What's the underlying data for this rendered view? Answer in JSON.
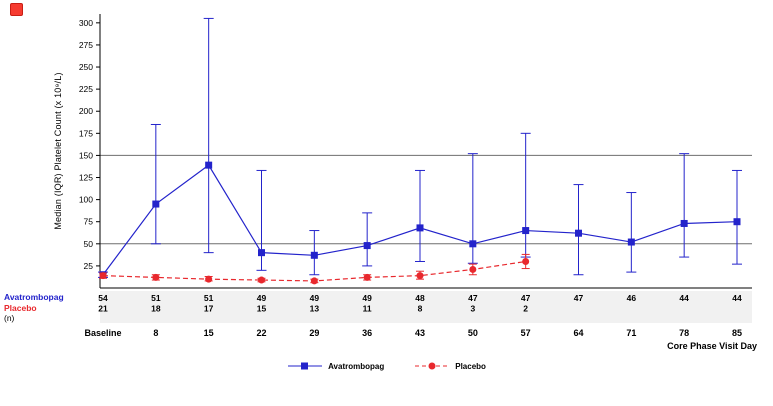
{
  "figure": {
    "broken_image_icon": "broken-image"
  },
  "chart_data": {
    "type": "line",
    "title": "",
    "ylabel": "Median (IQR) Platelet Count (x 10⁹/L)",
    "xlabel": "Core Phase Visit Day",
    "categories": [
      "Baseline",
      "8",
      "15",
      "22",
      "29",
      "36",
      "43",
      "50",
      "57",
      "64",
      "71",
      "78",
      "85"
    ],
    "yticks": [
      25,
      50,
      75,
      100,
      125,
      150,
      175,
      200,
      225,
      250,
      275,
      300
    ],
    "ylim": [
      0,
      310
    ],
    "reference_lines": [
      50,
      150
    ],
    "grid": false,
    "legend_position": "bottom-center",
    "n_table_label": "(n)",
    "series": [
      {
        "name": "Avatrombopag",
        "color": "#2323cb",
        "marker": "square",
        "line": "solid",
        "medians": [
          15,
          95,
          139,
          40,
          37,
          48,
          68,
          50,
          65,
          62,
          52,
          73,
          75
        ],
        "iqr_low": [
          12,
          50,
          40,
          20,
          15,
          25,
          30,
          28,
          35,
          15,
          18,
          35,
          27
        ],
        "iqr_high": [
          18,
          185,
          305,
          133,
          65,
          85,
          133,
          152,
          175,
          117,
          108,
          152,
          133
        ],
        "n": [
          54,
          51,
          51,
          49,
          49,
          49,
          48,
          47,
          47,
          47,
          46,
          44,
          44
        ]
      },
      {
        "name": "Placebo",
        "color": "#e8282d",
        "marker": "circle",
        "line": "dashed",
        "medians": [
          14,
          12,
          10,
          9,
          8,
          12,
          14,
          21,
          30
        ],
        "iqr_low": [
          11,
          9,
          8,
          7,
          6,
          9,
          10,
          15,
          22
        ],
        "iqr_high": [
          17,
          15,
          13,
          11,
          10,
          15,
          19,
          27,
          38
        ],
        "n": [
          21,
          18,
          17,
          15,
          13,
          11,
          8,
          3,
          2
        ]
      }
    ]
  }
}
